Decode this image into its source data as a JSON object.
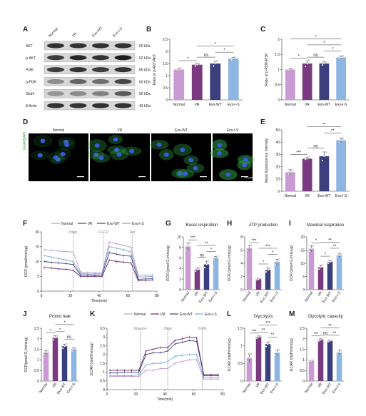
{
  "panels": {
    "a": "A",
    "b": "B",
    "c": "C",
    "d": "D",
    "e": "E",
    "f": "F",
    "g": "G",
    "h": "H",
    "i": "I",
    "j": "J",
    "k": "K",
    "l": "L",
    "m": "M"
  },
  "colors": {
    "normal": "#c99ad4",
    "ir": "#7a3a80",
    "exo_wt": "#3b3f7e",
    "exo_is": "#8db6e3",
    "normal_line": "#b99bc9",
    "ir_line": "#6b2a6c",
    "exo_wt_line": "#3b3f7e",
    "exo_is_line": "#7aa5d8"
  },
  "blot": {
    "columns": [
      "Normal",
      "I/R",
      "Exo-WT",
      "Exo-I-S"
    ],
    "rows": [
      {
        "protein": "AKT",
        "size": "60 kDa"
      },
      {
        "protein": "p-AKT",
        "size": "62 kDa"
      },
      {
        "protein": "PI3K",
        "size": "85 kDa"
      },
      {
        "protein": "p-PI3K",
        "size": "60 kDa"
      },
      {
        "protein": "Glut4",
        "size": "50 kDa"
      },
      {
        "protein": "β-Actin",
        "size": "43 kDa"
      }
    ],
    "intensity": [
      [
        0.85,
        0.85,
        0.85,
        0.85
      ],
      [
        0.8,
        0.9,
        0.85,
        0.95
      ],
      [
        0.8,
        0.85,
        0.8,
        0.85
      ],
      [
        0.4,
        0.6,
        0.55,
        0.75
      ],
      [
        0.35,
        0.4,
        0.45,
        0.65
      ],
      [
        0.85,
        0.85,
        0.85,
        0.85
      ]
    ]
  },
  "micrographs": {
    "titles": [
      "Normal",
      "I/R",
      "Exo-WT",
      "Exo-I-S"
    ],
    "stain": "Glut4/DAPI",
    "scale": "50 μm"
  },
  "chart_data": [
    {
      "id": "b",
      "type": "bar",
      "ylabel": "Ratio of p-AKT/AKT",
      "categories": [
        "Normal",
        "I/R",
        "Exo-WT",
        "Exo-I-S"
      ],
      "values": [
        1.25,
        1.45,
        1.5,
        1.7
      ],
      "errors": [
        0.05,
        0.05,
        0.1,
        0.06
      ],
      "ylim": [
        0,
        2.5
      ],
      "yticks": [
        0,
        0.5,
        1.0,
        1.5,
        2.0,
        2.5
      ],
      "points": [
        [
          1.2,
          1.25,
          1.3
        ],
        [
          1.4,
          1.45,
          1.5
        ],
        [
          1.4,
          1.5,
          1.6
        ],
        [
          1.65,
          1.7,
          1.75
        ]
      ],
      "sig": [
        {
          "from": 0,
          "to": 1,
          "label": "*"
        },
        {
          "from": 1,
          "to": 2,
          "label": "ns"
        },
        {
          "from": 2,
          "to": 3,
          "label": "*"
        },
        {
          "from": 1,
          "to": 3,
          "label": "*"
        }
      ]
    },
    {
      "id": "c",
      "type": "bar",
      "ylabel": "Ratio of p-PI3K/PI3K",
      "categories": [
        "Normal",
        "I/R",
        "Exo-WT",
        "Exo-I-S"
      ],
      "values": [
        1.0,
        1.2,
        1.2,
        1.4
      ],
      "errors": [
        0.04,
        0.08,
        0.06,
        0.05
      ],
      "ylim": [
        0,
        2.0
      ],
      "yticks": [
        0,
        0.5,
        1.0,
        1.5,
        2.0
      ],
      "points": [
        [
          0.98,
          1.0,
          1.03
        ],
        [
          1.1,
          1.2,
          1.3
        ],
        [
          1.15,
          1.2,
          1.25
        ],
        [
          1.35,
          1.4,
          1.45
        ]
      ],
      "sig": [
        {
          "from": 0,
          "to": 1,
          "label": "*"
        },
        {
          "from": 1,
          "to": 2,
          "label": "ns"
        },
        {
          "from": 2,
          "to": 3,
          "label": "*"
        },
        {
          "from": 1,
          "to": 3,
          "label": "*"
        },
        {
          "from": 0,
          "to": 3,
          "label": "*"
        }
      ]
    },
    {
      "id": "f",
      "type": "line",
      "xlabel": "Time(min)",
      "ylabel": "OCR (pmol/min/μg)",
      "legend": [
        "Normal",
        "I/R",
        "Exo-WT",
        "Exo-I-S"
      ],
      "xlim": [
        0,
        80
      ],
      "ylim": [
        0,
        20
      ],
      "xticks": [
        0,
        20,
        40,
        60,
        80
      ],
      "yticks": [
        0,
        5,
        10,
        15,
        20
      ],
      "markers": [
        {
          "x": 22,
          "label": "Oligo"
        },
        {
          "x": 43,
          "label": "FCCP"
        },
        {
          "x": 63,
          "label": "Rot"
        }
      ],
      "x": [
        2,
        7,
        12,
        17,
        22,
        27,
        32,
        37,
        42,
        47,
        52,
        57,
        62,
        67,
        72,
        77
      ],
      "series": [
        {
          "name": "Normal",
          "values": [
            14,
            13.8,
            13.5,
            13.4,
            13.2,
            6.5,
            6.3,
            6.2,
            6.2,
            16.5,
            16,
            15.5,
            14.8,
            5.5,
            5.4,
            5.5
          ]
        },
        {
          "name": "I/R",
          "values": [
            8,
            7.8,
            7.5,
            7.4,
            7,
            5,
            5,
            5,
            5,
            10.5,
            10,
            9.8,
            9.5,
            3.5,
            3.6,
            3.8
          ]
        },
        {
          "name": "Exo-WT",
          "values": [
            10,
            9.7,
            9.5,
            9.3,
            9,
            5.5,
            5.5,
            5.4,
            5.5,
            13,
            12.5,
            12,
            11.8,
            4,
            4.1,
            4.2
          ]
        },
        {
          "name": "Exo-I-S",
          "values": [
            12,
            11.5,
            11,
            10.5,
            10,
            6,
            5.8,
            5.8,
            5.9,
            15,
            14.5,
            14,
            13.2,
            4.8,
            4.8,
            5
          ]
        }
      ]
    },
    {
      "id": "g",
      "type": "bar",
      "title": "Basel respiration",
      "ylabel": "OCR (pmol O₂/min/μg)",
      "categories": [
        "Normal",
        "I/R",
        "Exo-WT",
        "Exo-I-S"
      ],
      "values": [
        8.2,
        3.8,
        4.8,
        6.0
      ],
      "errors": [
        0.7,
        0.3,
        0.6,
        0.3
      ],
      "ylim": [
        0,
        10
      ],
      "yticks": [
        0,
        2,
        4,
        6,
        8,
        10
      ],
      "points": [
        [
          7.5,
          8.2,
          8.8
        ],
        [
          3.5,
          3.8,
          4.1
        ],
        [
          4.2,
          4.8,
          5.4
        ],
        [
          5.7,
          6.0,
          6.3
        ]
      ],
      "sig": [
        {
          "from": 0,
          "to": 1,
          "label": "***"
        },
        {
          "from": 1,
          "to": 2,
          "label": "ns"
        },
        {
          "from": 2,
          "to": 3,
          "label": "*"
        },
        {
          "from": 1,
          "to": 3,
          "label": "**"
        }
      ]
    },
    {
      "id": "h",
      "type": "bar",
      "title": "ATP production",
      "ylabel": "OCR (pmol O₂/min/μg)",
      "categories": [
        "Normal",
        "I/R",
        "Exo-WT",
        "Exo-I-S"
      ],
      "values": [
        6.3,
        1.6,
        3.0,
        4.2
      ],
      "errors": [
        0.4,
        0.1,
        0.3,
        0.4
      ],
      "ylim": [
        0,
        8
      ],
      "yticks": [
        0,
        2,
        4,
        6,
        8
      ],
      "points": [
        [
          5.9,
          6.3,
          6.7
        ],
        [
          1.5,
          1.6,
          1.7
        ],
        [
          2.7,
          3.0,
          3.3
        ],
        [
          3.8,
          4.2,
          4.6
        ]
      ],
      "sig": [
        {
          "from": 0,
          "to": 1,
          "label": "***"
        },
        {
          "from": 1,
          "to": 2,
          "label": "*"
        },
        {
          "from": 2,
          "to": 3,
          "label": "*"
        },
        {
          "from": 1,
          "to": 3,
          "label": "***"
        }
      ]
    },
    {
      "id": "i",
      "type": "bar",
      "title": "Maximal respiration",
      "ylabel": "OCR (pmol O₂/min/μg)",
      "categories": [
        "Normal",
        "I/R",
        "Exo-WT",
        "Exo-I-S"
      ],
      "values": [
        15.5,
        8.5,
        10.5,
        13.0
      ],
      "errors": [
        1.2,
        0.8,
        0.7,
        0.8
      ],
      "ylim": [
        0,
        20
      ],
      "yticks": [
        0,
        5,
        10,
        15,
        20
      ],
      "points": [
        [
          14.5,
          15.5,
          16.5
        ],
        [
          7.8,
          8.5,
          9.2
        ],
        [
          10,
          10.5,
          11
        ],
        [
          12.3,
          13,
          13.7
        ]
      ],
      "sig": [
        {
          "from": 0,
          "to": 1,
          "label": "*"
        },
        {
          "from": 1,
          "to": 2,
          "label": "*"
        },
        {
          "from": 2,
          "to": 3,
          "label": "**"
        },
        {
          "from": 1,
          "to": 3,
          "label": "**"
        }
      ]
    },
    {
      "id": "e",
      "type": "bar",
      "ylabel": "Mean fluorescence intensity",
      "categories": [
        "Normal",
        "I/R",
        "Exo-WT",
        "Exo-I-S"
      ],
      "values": [
        15.5,
        26.5,
        28.5,
        41.5
      ],
      "errors": [
        2.0,
        1.0,
        3.5,
        2.0
      ],
      "ylim": [
        0,
        50
      ],
      "yticks": [
        0,
        10,
        20,
        30,
        40,
        50
      ],
      "points": [
        [
          14,
          15.5,
          17
        ],
        [
          26,
          26.5,
          27.5
        ],
        [
          25,
          28.5,
          32
        ],
        [
          39.5,
          41.5,
          43
        ]
      ],
      "sig": [
        {
          "from": 0,
          "to": 1,
          "label": "***"
        },
        {
          "from": 1,
          "to": 2,
          "label": "ns"
        },
        {
          "from": 2,
          "to": 3,
          "label": "**"
        },
        {
          "from": 1,
          "to": 3,
          "label": "**"
        }
      ]
    },
    {
      "id": "j",
      "type": "bar",
      "title": "Proton leak",
      "ylabel": "OCR(pmol O₂/min/μg)",
      "categories": [
        "Normal",
        "I/R",
        "Exo-WT",
        "Exo-I-S"
      ],
      "values": [
        1.35,
        2.05,
        1.65,
        1.5
      ],
      "errors": [
        0.1,
        0.1,
        0.1,
        0.08
      ],
      "ylim": [
        0,
        2.5
      ],
      "yticks": [
        0,
        0.5,
        1.0,
        1.5,
        2.0,
        2.5
      ],
      "points": [
        [
          1.25,
          1.35,
          1.45
        ],
        [
          1.95,
          2.05,
          2.15
        ],
        [
          1.55,
          1.65,
          1.75
        ],
        [
          1.42,
          1.5,
          1.58
        ]
      ],
      "sig": [
        {
          "from": 0,
          "to": 1,
          "label": "*"
        },
        {
          "from": 1,
          "to": 2,
          "label": "*"
        },
        {
          "from": 2,
          "to": 3,
          "label": "ns"
        },
        {
          "from": 1,
          "to": 3,
          "label": "*"
        }
      ]
    },
    {
      "id": "k",
      "type": "line",
      "xlabel": "Time(min)",
      "ylabel": "ECAR (mpH/min/μg)",
      "legend": [
        "Normal",
        "I/R",
        "Exo-WT",
        "Exo-I-S"
      ],
      "xlim": [
        0,
        80
      ],
      "ylim": [
        0,
        3.5
      ],
      "xticks": [
        0,
        20,
        40,
        60,
        80
      ],
      "yticks": [
        0,
        0.5,
        1.0,
        1.5,
        2.0,
        2.5,
        3.0,
        3.5
      ],
      "markers": [
        {
          "x": 23,
          "label": "Glucose"
        },
        {
          "x": 42,
          "label": "Oligo"
        },
        {
          "x": 66,
          "label": "2-DG"
        }
      ],
      "x": [
        2,
        7,
        12,
        17,
        22,
        27,
        32,
        37,
        42,
        47,
        52,
        57,
        62,
        67,
        72,
        77
      ],
      "series": [
        {
          "name": "Normal",
          "values": [
            0.75,
            0.75,
            0.75,
            0.75,
            0.75,
            1.1,
            1.1,
            1.2,
            1.2,
            1.5,
            1.6,
            1.7,
            1.7,
            0.6,
            0.6,
            0.6
          ]
        },
        {
          "name": "I/R",
          "values": [
            1.1,
            1.1,
            1.1,
            1.1,
            1.1,
            2.2,
            2.3,
            2.4,
            2.4,
            2.8,
            2.9,
            3.0,
            2.95,
            0.85,
            0.85,
            0.85
          ]
        },
        {
          "name": "Exo-WT",
          "values": [
            0.95,
            0.95,
            1.0,
            1.0,
            1.0,
            2.0,
            2.1,
            2.1,
            2.2,
            2.6,
            2.7,
            2.8,
            2.75,
            0.8,
            0.8,
            0.8
          ]
        },
        {
          "name": "Exo-I-S",
          "values": [
            0.8,
            0.8,
            0.8,
            0.8,
            0.85,
            1.4,
            1.5,
            1.5,
            1.6,
            1.9,
            1.95,
            2.0,
            2.0,
            0.7,
            0.7,
            0.7
          ]
        }
      ]
    },
    {
      "id": "l",
      "type": "bar",
      "title": "Glycolysis",
      "ylabel": "ECAR (mpH/min/μg)",
      "categories": [
        "Normal",
        "I/R",
        "Exo-WT",
        "Exo-I-S"
      ],
      "values": [
        0.65,
        1.25,
        1.05,
        0.8
      ],
      "errors": [
        0.12,
        0.03,
        0.06,
        0.08
      ],
      "ylim": [
        0,
        1.5
      ],
      "yticks": [
        0,
        0.5,
        1.0,
        1.5
      ],
      "points": [
        [
          0.55,
          0.65,
          0.77
        ],
        [
          1.22,
          1.25,
          1.28
        ],
        [
          0.98,
          1.05,
          1.12
        ],
        [
          0.72,
          0.8,
          0.88
        ]
      ],
      "sig": [
        {
          "from": 0,
          "to": 1,
          "label": "***"
        },
        {
          "from": 1,
          "to": 2,
          "label": "**"
        },
        {
          "from": 2,
          "to": 3,
          "label": "**"
        },
        {
          "from": 1,
          "to": 3,
          "label": "***"
        }
      ]
    },
    {
      "id": "m",
      "type": "bar",
      "title": "Glycolytic capacity",
      "ylabel": "ECAR (mpH/min/μg)",
      "categories": [
        "Normal",
        "I/R",
        "Exo-WT",
        "Exo-I-S"
      ],
      "values": [
        0.95,
        1.95,
        1.9,
        1.35
      ],
      "errors": [
        0.03,
        0.05,
        0.03,
        0.12
      ],
      "ylim": [
        0,
        2.5
      ],
      "yticks": [
        0,
        0.5,
        1.0,
        1.5,
        2.0,
        2.5
      ],
      "points": [
        [
          0.92,
          0.95,
          0.98
        ],
        [
          1.9,
          1.95,
          2.0
        ],
        [
          1.87,
          1.9,
          1.93
        ],
        [
          1.25,
          1.35,
          1.45
        ]
      ],
      "sig": [
        {
          "from": 0,
          "to": 1,
          "label": "***"
        },
        {
          "from": 1,
          "to": 2,
          "label": "ns"
        },
        {
          "from": 2,
          "to": 3,
          "label": "**"
        },
        {
          "from": 1,
          "to": 3,
          "label": "**"
        }
      ]
    }
  ]
}
